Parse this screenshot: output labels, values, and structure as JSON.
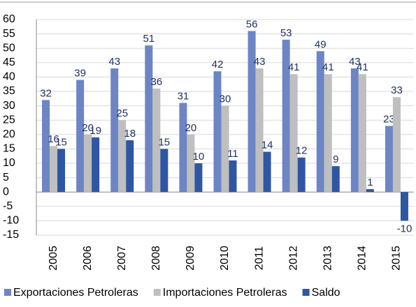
{
  "chart_data": {
    "type": "bar",
    "categories": [
      "2005",
      "2006",
      "2007",
      "2008",
      "2009",
      "2010",
      "2011",
      "2012",
      "2013",
      "2014",
      "2015"
    ],
    "series": [
      {
        "name": "Exportaciones Petroleras",
        "color": "#6d85c5",
        "values": [
          32,
          39,
          43,
          51,
          31,
          42,
          56,
          53,
          49,
          43,
          23
        ]
      },
      {
        "name": "Importaciones Petroleras",
        "color": "#bfbfbf",
        "values": [
          16,
          20,
          25,
          36,
          20,
          30,
          43,
          41,
          41,
          41,
          33
        ]
      },
      {
        "name": "Saldo",
        "color": "#2f56a3",
        "values": [
          15,
          19,
          18,
          15,
          10,
          11,
          14,
          12,
          9,
          1,
          -10
        ]
      }
    ],
    "ylim": [
      -15,
      60
    ],
    "yticks": [
      -15,
      -10,
      -5,
      0,
      5,
      10,
      15,
      20,
      25,
      30,
      35,
      40,
      45,
      50,
      55,
      60
    ],
    "grid": true,
    "legend": "bottom"
  }
}
